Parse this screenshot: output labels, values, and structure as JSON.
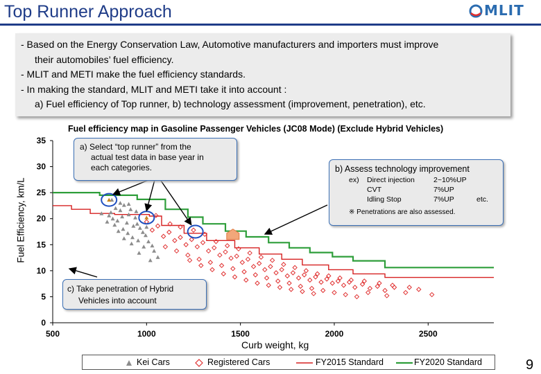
{
  "header": {
    "title": "Top Runner Approach",
    "logo_text": "MLIT"
  },
  "intro": {
    "lines": [
      "- Based on the Energy Conservation Law, Automotive manufacturers and importers must improve",
      "their automobiles’ fuel efficiency.",
      "- MLIT and METI make the fuel efficiency standards.",
      "- In making the standard, MLIT and METI take it into account :",
      "a) Fuel efficiency of Top runner, b) technology assessment (improvement, penetration), etc."
    ]
  },
  "callouts": {
    "a": {
      "line1": "a) Select “top runner” from the",
      "line2": "actual test data in base year in",
      "line3": "each categories."
    },
    "b": {
      "head": "b)  Assess technology improvement",
      "ex_label": "ex)",
      "items": [
        {
          "name": "Direct injection",
          "value": "2~10%UP"
        },
        {
          "name": "CVT",
          "value": "7%UP"
        },
        {
          "name": "Idling Stop",
          "value": "7%UP"
        }
      ],
      "etc": "etc.",
      "note": "※ Penetrations are also assessed."
    },
    "c": {
      "line1": "c) Take penetration of Hybrid",
      "line2": "Vehicles into account"
    }
  },
  "page_number": "9",
  "colors": {
    "title_blue": "#1f3c88",
    "kei": "#8c8c8c",
    "registered": "#e03030",
    "fy2015": "#d62020",
    "fy2020": "#2e9e3a",
    "highlight_circle": "#1f4fbf"
  },
  "chart_data": {
    "type": "scatter",
    "title": "Fuel efficiency map in Gasoline Passenger Vehicles (JC08 Mode) (Exclude Hybrid Vehicles)",
    "xlabel": "Curb weight, kg",
    "ylabel": "Fuel Efficiency, km/L",
    "xlim": [
      500,
      2850
    ],
    "ylim": [
      0,
      35
    ],
    "xticks": [
      500,
      1000,
      1500,
      2000,
      2500
    ],
    "yticks": [
      0,
      5,
      10,
      15,
      20,
      25,
      30,
      35
    ],
    "grid": false,
    "legend_position": "bottom",
    "series": [
      {
        "name": "Kei Cars",
        "kind": "scatter",
        "marker": "triangle",
        "points": [
          [
            800,
            20.6
          ],
          [
            810,
            21.2
          ],
          [
            820,
            20.0
          ],
          [
            835,
            22.0
          ],
          [
            845,
            19.6
          ],
          [
            860,
            21.6
          ],
          [
            870,
            20.4
          ],
          [
            880,
            22.6
          ],
          [
            895,
            19.2
          ],
          [
            905,
            20.8
          ],
          [
            915,
            21.8
          ],
          [
            930,
            18.6
          ],
          [
            940,
            20.2
          ],
          [
            950,
            19.0
          ],
          [
            965,
            18.2
          ],
          [
            980,
            17.4
          ],
          [
            995,
            16.8
          ],
          [
            1010,
            15.6
          ],
          [
            1030,
            14.8
          ],
          [
            830,
            18.8
          ],
          [
            850,
            17.6
          ],
          [
            875,
            18.0
          ],
          [
            900,
            17.2
          ],
          [
            925,
            16.4
          ],
          [
            955,
            15.8
          ],
          [
            985,
            14.6
          ],
          [
            790,
            19.4
          ],
          [
            860,
            23.0
          ],
          [
            905,
            22.8
          ],
          [
            945,
            21.4
          ],
          [
            1000,
            18.4
          ],
          [
            1040,
            13.8
          ],
          [
            1060,
            12.6
          ],
          [
            880,
            16.2
          ],
          [
            920,
            15.2
          ],
          [
            960,
            13.4
          ],
          [
            1020,
            12.0
          ],
          [
            760,
            21.0
          ],
          [
            815,
            23.6
          ]
        ]
      },
      {
        "name": "Registered Cars",
        "kind": "scatter",
        "marker": "diamond",
        "points": [
          [
            1000,
            19.4
          ],
          [
            1030,
            17.8
          ],
          [
            1060,
            18.6
          ],
          [
            1090,
            16.6
          ],
          [
            1120,
            17.4
          ],
          [
            1150,
            15.8
          ],
          [
            1180,
            16.4
          ],
          [
            1210,
            15.0
          ],
          [
            1240,
            16.0
          ],
          [
            1270,
            14.6
          ],
          [
            1300,
            15.4
          ],
          [
            1330,
            13.8
          ],
          [
            1360,
            14.4
          ],
          [
            1390,
            13.0
          ],
          [
            1420,
            13.6
          ],
          [
            1450,
            12.4
          ],
          [
            1480,
            12.8
          ],
          [
            1510,
            11.6
          ],
          [
            1540,
            12.2
          ],
          [
            1570,
            10.8
          ],
          [
            1600,
            11.4
          ],
          [
            1630,
            10.2
          ],
          [
            1660,
            10.8
          ],
          [
            1690,
            9.6
          ],
          [
            1720,
            10.2
          ],
          [
            1750,
            9.0
          ],
          [
            1780,
            9.6
          ],
          [
            1810,
            8.6
          ],
          [
            1840,
            9.2
          ],
          [
            1870,
            8.2
          ],
          [
            1900,
            8.8
          ],
          [
            1930,
            7.8
          ],
          [
            1960,
            8.4
          ],
          [
            1990,
            7.6
          ],
          [
            2020,
            8.0
          ],
          [
            2050,
            7.2
          ],
          [
            2080,
            7.8
          ],
          [
            2110,
            6.8
          ],
          [
            2150,
            7.4
          ],
          [
            2190,
            6.6
          ],
          [
            2230,
            7.0
          ],
          [
            2270,
            6.2
          ],
          [
            2320,
            6.8
          ],
          [
            2380,
            5.8
          ],
          [
            2450,
            6.4
          ],
          [
            2520,
            5.4
          ],
          [
            1100,
            14.6
          ],
          [
            1160,
            13.8
          ],
          [
            1220,
            13.0
          ],
          [
            1280,
            12.2
          ],
          [
            1340,
            11.6
          ],
          [
            1400,
            11.0
          ],
          [
            1460,
            10.4
          ],
          [
            1520,
            9.8
          ],
          [
            1580,
            9.2
          ],
          [
            1640,
            8.6
          ],
          [
            1700,
            8.0
          ],
          [
            1760,
            7.6
          ],
          [
            1820,
            7.0
          ],
          [
            1880,
            6.6
          ],
          [
            1940,
            6.2
          ],
          [
            2000,
            5.8
          ],
          [
            2060,
            5.4
          ],
          [
            2120,
            5.0
          ],
          [
            1250,
            17.8
          ],
          [
            1310,
            17.0
          ],
          [
            1370,
            15.6
          ],
          [
            1430,
            14.8
          ],
          [
            1490,
            14.2
          ],
          [
            1550,
            13.4
          ],
          [
            1610,
            12.6
          ],
          [
            1670,
            12.0
          ],
          [
            1730,
            11.2
          ],
          [
            1790,
            10.6
          ],
          [
            1850,
            10.0
          ],
          [
            1910,
            9.4
          ],
          [
            1970,
            9.0
          ],
          [
            2030,
            8.6
          ],
          [
            2090,
            8.2
          ],
          [
            2160,
            8.0
          ],
          [
            2240,
            7.6
          ],
          [
            2310,
            7.2
          ],
          [
            2400,
            6.8
          ],
          [
            1230,
            12.0
          ],
          [
            1290,
            11.0
          ],
          [
            1350,
            10.2
          ],
          [
            1410,
            9.4
          ],
          [
            1470,
            8.8
          ],
          [
            1530,
            8.2
          ],
          [
            1590,
            7.6
          ],
          [
            1650,
            7.2
          ],
          [
            1710,
            6.8
          ],
          [
            1770,
            6.4
          ],
          [
            1830,
            6.0
          ],
          [
            1890,
            5.6
          ],
          [
            2180,
            5.8
          ],
          [
            2280,
            5.2
          ],
          [
            1180,
            18.4
          ],
          [
            1125,
            19.0
          ],
          [
            1050,
            20.6
          ]
        ]
      },
      {
        "name": "FY2015 Standard",
        "kind": "step",
        "color": "#d62020",
        "points": [
          [
            500,
            22.5
          ],
          [
            600,
            22.5
          ],
          [
            600,
            21.8
          ],
          [
            700,
            21.8
          ],
          [
            700,
            21.0
          ],
          [
            830,
            21.0
          ],
          [
            830,
            20.8
          ],
          [
            1015,
            20.8
          ],
          [
            1015,
            20.5
          ],
          [
            1080,
            20.5
          ],
          [
            1080,
            18.7
          ],
          [
            1200,
            18.7
          ],
          [
            1200,
            17.2
          ],
          [
            1320,
            17.2
          ],
          [
            1320,
            15.8
          ],
          [
            1470,
            15.8
          ],
          [
            1470,
            14.4
          ],
          [
            1600,
            14.4
          ],
          [
            1600,
            13.2
          ],
          [
            1720,
            13.2
          ],
          [
            1720,
            12.2
          ],
          [
            1830,
            12.2
          ],
          [
            1830,
            11.1
          ],
          [
            1970,
            11.1
          ],
          [
            1970,
            10.2
          ],
          [
            2100,
            10.2
          ],
          [
            2100,
            9.4
          ],
          [
            2270,
            9.4
          ],
          [
            2270,
            8.7
          ],
          [
            2850,
            8.7
          ]
        ]
      },
      {
        "name": "FY2020 Standard",
        "kind": "step",
        "color": "#2e9e3a",
        "points": [
          [
            500,
            25.0
          ],
          [
            750,
            25.0
          ],
          [
            750,
            24.5
          ],
          [
            950,
            24.5
          ],
          [
            950,
            23.7
          ],
          [
            1100,
            23.7
          ],
          [
            1100,
            21.8
          ],
          [
            1220,
            21.8
          ],
          [
            1220,
            20.3
          ],
          [
            1300,
            20.3
          ],
          [
            1300,
            19.0
          ],
          [
            1420,
            19.0
          ],
          [
            1420,
            17.6
          ],
          [
            1530,
            17.6
          ],
          [
            1530,
            16.5
          ],
          [
            1650,
            16.5
          ],
          [
            1650,
            15.4
          ],
          [
            1760,
            15.4
          ],
          [
            1760,
            14.4
          ],
          [
            1870,
            14.4
          ],
          [
            1870,
            13.5
          ],
          [
            1990,
            13.5
          ],
          [
            1990,
            12.7
          ],
          [
            2100,
            12.7
          ],
          [
            2100,
            11.9
          ],
          [
            2270,
            11.9
          ],
          [
            2270,
            10.6
          ],
          [
            2850,
            10.6
          ]
        ]
      },
      {
        "name": "Hybrid Vehicles (excluded)",
        "kind": "marker",
        "points": [
          [
            1460,
            16.8
          ]
        ]
      }
    ],
    "highlighted_top_runners": [
      [
        800,
        23.6
      ],
      [
        1000,
        20.2
      ],
      [
        1260,
        17.5
      ]
    ]
  }
}
